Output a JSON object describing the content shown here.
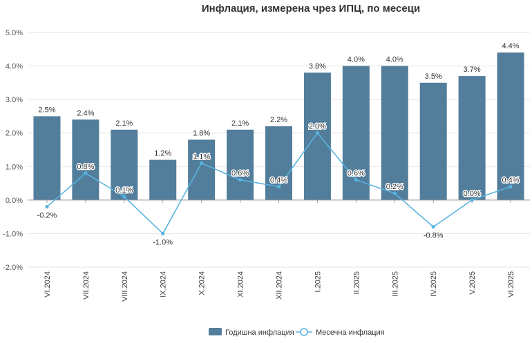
{
  "chart_data": {
    "type": "bar",
    "title": "Инфлация, измерена чрез ИПЦ, по месеци",
    "categories": [
      "VI.2024",
      "VII.2024",
      "VIII.2024",
      "IX.2024",
      "X.2024",
      "XI.2024",
      "XII.2024",
      "I.2025",
      "II.2025",
      "III.2025",
      "IV.2025",
      "V.2025",
      "VI.2025"
    ],
    "series": [
      {
        "name": "Годишна инфлация",
        "type": "bar",
        "color": "#527d9b",
        "values": [
          2.5,
          2.4,
          2.1,
          1.2,
          1.8,
          2.1,
          2.2,
          3.8,
          4.0,
          4.0,
          3.5,
          3.7,
          4.4
        ]
      },
      {
        "name": "Месечна инфлация",
        "type": "line",
        "color": "#5ab4e0",
        "values": [
          -0.2,
          0.8,
          0.1,
          -1.0,
          1.1,
          0.6,
          0.4,
          2.0,
          0.6,
          0.2,
          -0.8,
          0.0,
          0.4
        ]
      }
    ],
    "yticks": [
      "5.0%",
      "4.0%",
      "3.0%",
      "2.0%",
      "1.0%",
      "0.0%",
      "-1.0%",
      "-2.0%"
    ],
    "ylim": [
      -2,
      5
    ],
    "unit": "%",
    "grid": true,
    "legend_position": "bottom"
  }
}
